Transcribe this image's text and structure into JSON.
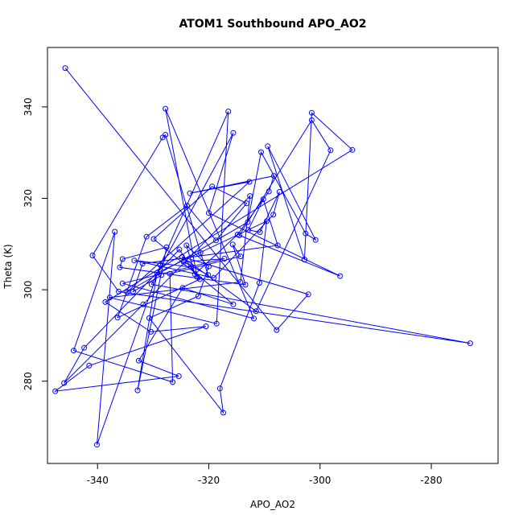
{
  "chart_data": {
    "type": "line",
    "title": "ATOM1 Southbound APO_AO2",
    "xlabel": "APO_AO2",
    "ylabel": "Theta (K)",
    "xlim": [
      -349,
      -268
    ],
    "ylim": [
      262,
      353
    ],
    "xticks": [
      -340,
      -320,
      -300,
      -280
    ],
    "xtick_labels": [
      "-340",
      "-320",
      "-300",
      "-280"
    ],
    "yticks": [
      280,
      300,
      320,
      340
    ],
    "ytick_labels": [
      "280",
      "300",
      "320",
      "340"
    ],
    "grid": false,
    "legend": "none",
    "marker": "open-circle",
    "color": "#0000ff",
    "series": [
      {
        "x": [
          -345.8,
          -307.8,
          -302.1,
          -324.8,
          -311.5,
          -298.1,
          -301.5,
          -314.5,
          -296.4,
          -320.0,
          -315.6,
          -330.3,
          -273.0,
          -336.2,
          -340.9,
          -328.3,
          -327.8,
          -321.5,
          -320.1,
          -324.5,
          -317.2,
          -335.5,
          -311.9,
          -327.8,
          -322.1,
          -325.3,
          -342.4,
          -346.0,
          -331.8,
          -312.6,
          -314.3,
          -337.8,
          -318.6,
          -316.5,
          -328.7,
          -340.1,
          -336.9,
          -344.3,
          -326.5,
          -327.0,
          -314.3,
          -315.7,
          -313.4,
          -336.0,
          -335.5,
          -327.6,
          -332.8,
          -329.3,
          -309.6,
          -310.9,
          -318.0,
          -317.4,
          -330.7,
          -321.9,
          -320.0,
          -324.0,
          -322.5,
          -314.8,
          -309.2,
          -308.3,
          -323.4,
          -312.7,
          -334.7,
          -313.0,
          -310.6,
          -302.6,
          -300.8,
          -309.4,
          -302.8,
          -301.5,
          -294.2,
          -338.6,
          -330.4,
          -320.5,
          -341.5,
          -347.6,
          -325.4,
          -332.6,
          -324.7,
          -315.6,
          -329.9,
          -319.4,
          -313.2,
          -318.7,
          -323.9,
          -331.2,
          -336.4,
          -321.6,
          -323.2,
          -333.4,
          -319.1,
          -308.4,
          -307.3,
          -310.8,
          -312.9,
          -310.2,
          -307.6,
          -331.9,
          -333.6,
          -328.5
        ],
        "y": [
          348.5,
          291.2,
          299.0,
          307.2,
          295.3,
          330.5,
          337.1,
          311.9,
          303.0,
          316.8,
          334.3,
          301.2,
          288.3,
          299.6,
          307.5,
          333.3,
          333.9,
          308.1,
          303.2,
          306.1,
          306.8,
          301.4,
          293.7,
          339.6,
          302.8,
          308.8,
          287.3,
          279.6,
          296.8,
          320.5,
          301.7,
          298.3,
          292.6,
          339.0,
          305.4,
          266.1,
          312.7,
          286.7,
          279.8,
          303.5,
          307.3,
          309.9,
          301.1,
          304.9,
          306.7,
          309.3,
          278.0,
          303.7,
          315.0,
          301.5,
          278.4,
          273.1,
          293.8,
          298.6,
          305.1,
          309.7,
          303.4,
          312.1,
          321.5,
          324.9,
          321.1,
          323.6,
          299.5,
          314.8,
          330.1,
          312.3,
          310.9,
          331.4,
          306.6,
          338.7,
          330.6,
          297.3,
          290.8,
          292.0,
          283.4,
          277.8,
          281.1,
          284.5,
          300.4,
          296.8,
          311.1,
          322.6,
          318.9,
          310.8,
          318.4,
          311.6,
          293.9,
          302.3,
          305.0,
          306.4,
          302.6,
          316.4,
          321.4,
          312.6,
          313.1,
          319.8,
          309.7,
          305.7,
          299.6,
          303.2
        ]
      }
    ]
  }
}
